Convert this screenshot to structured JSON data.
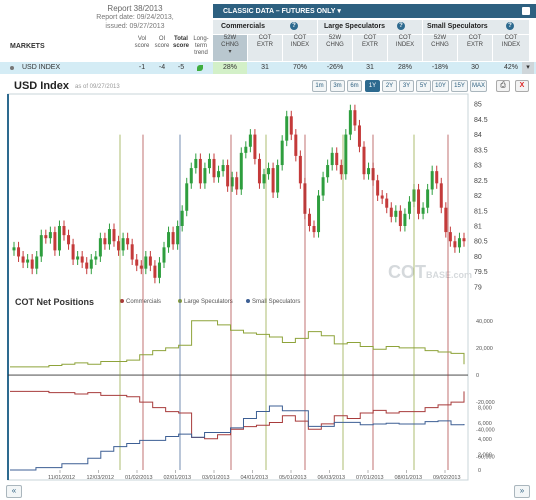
{
  "report": {
    "line1": "Report 38/2013",
    "line2": "Report date: 09/24/2013,",
    "line3": "issued: 09/27/2013"
  },
  "top_header": {
    "title": "CLASSIC DATA – FUTURES ONLY",
    "dropdown_icon": "chevron-down-icon",
    "print_icon": "printer-icon"
  },
  "groups": {
    "commercials": "Commercials",
    "large": "Large Speculators",
    "small": "Small Speculators",
    "help_glyph": "?"
  },
  "left_headers": {
    "markets": "MARKETS",
    "voi": [
      "Vol",
      "score"
    ],
    "oi": [
      "OI",
      "score"
    ],
    "total": [
      "Total",
      "score"
    ],
    "trend": [
      "Long-",
      "term",
      "trend"
    ]
  },
  "col_headers": {
    "chng": [
      "52W",
      "CHNG"
    ],
    "extr": [
      "COT",
      "EXTR"
    ],
    "index": [
      "COT",
      "INDEX"
    ]
  },
  "row": {
    "market": "USD INDEX",
    "vol": "-1",
    "oi": "-4",
    "total": "-5",
    "trend_icon": "leaf-icon",
    "comm": [
      "28%",
      "31",
      "70%"
    ],
    "large": [
      "-26%",
      "31",
      "28%"
    ],
    "small": [
      "-18%",
      "30",
      "42%"
    ]
  },
  "chart_header": {
    "title": "USD Index",
    "asof": "as of 09/27/2013",
    "ranges": [
      "1m",
      "3m",
      "6m",
      "1Y",
      "2Y",
      "3Y",
      "5Y",
      "10Y",
      "15Y",
      "MAX"
    ],
    "active_range": "1Y",
    "print_icon": "printer-icon",
    "close_glyph": "X"
  },
  "watermark": {
    "big": "COT",
    "small": "BASE",
    "suffix": ".com"
  },
  "cot_panel": {
    "title": "COT Net Positions"
  },
  "nav": {
    "prev": "«",
    "next": "»"
  },
  "colors": {
    "commercials": "#a83b3b",
    "large": "#8ea33a",
    "small": "#3d5f94",
    "up_candle": "#2e9e3e",
    "down_candle": "#c43a3a"
  },
  "chart_data": [
    {
      "type": "line",
      "title": "USD Index",
      "y_ticks": [
        "79",
        "79.5",
        "80",
        "80.5",
        "81",
        "81.5",
        "82",
        "82.5",
        "83",
        "83.5",
        "84",
        "84.5",
        "85"
      ],
      "ylim": [
        78.9,
        85.2
      ],
      "series": [
        {
          "values": [
            80.3,
            80.0,
            79.8,
            79.9,
            79.6,
            80.0,
            80.7,
            80.6,
            80.8,
            80.2,
            81.0,
            80.7,
            80.4,
            79.9,
            80.0,
            79.8,
            79.6,
            79.9,
            80.0,
            80.6,
            80.4,
            80.9,
            80.5,
            80.2,
            80.6,
            80.4,
            79.9,
            79.7,
            79.6,
            80.0,
            79.7,
            79.3,
            79.8,
            80.3,
            80.8,
            80.4,
            81.0,
            81.5,
            82.4,
            82.9,
            83.2,
            82.4,
            82.9,
            83.2,
            82.6,
            82.8,
            83.0,
            82.3,
            82.6,
            82.2,
            83.4,
            83.6,
            84.0,
            83.2,
            82.4,
            82.7,
            82.9,
            82.1,
            83.0,
            83.8,
            84.6,
            84.0,
            83.3,
            82.4,
            81.4,
            81.0,
            80.8,
            82.0,
            82.6,
            83.0,
            83.4,
            83.0,
            82.7,
            84.0,
            84.8,
            84.3,
            83.6,
            82.7,
            82.9,
            82.5,
            82.0,
            81.9,
            81.6,
            81.3,
            81.5,
            81.0,
            81.4,
            81.8,
            82.2,
            81.4,
            81.6,
            82.2,
            82.8,
            82.4,
            81.6,
            80.8,
            80.5,
            80.3,
            80.6,
            80.5
          ]
        }
      ]
    },
    {
      "type": "line",
      "title": "COT Net Positions",
      "y_ticks_right": [
        "40,000",
        "20,000",
        "0",
        "-20,000",
        "-40,000",
        "-60,000"
      ],
      "ylim_right": [
        -70000,
        45000
      ],
      "y_ticks_right_small": [
        "8,000",
        "6,000",
        "4,000",
        "2,000",
        "0"
      ],
      "ylim_right_small": [
        0,
        10000
      ],
      "x_ticks": [
        "11/01/2012",
        "12/03/2012",
        "01/02/2013",
        "02/01/2013",
        "03/01/2013",
        "04/01/2013",
        "05/01/2013",
        "06/03/2013",
        "07/01/2013",
        "08/01/2013",
        "09/02/2013"
      ],
      "series": [
        {
          "name": "Commercials",
          "values": [
            -12000,
            -12000,
            -12000,
            -13000,
            -13000,
            -14000,
            -13000,
            -15000,
            -15000,
            -16000,
            -20000,
            -24000,
            -27000,
            -28000,
            -46000,
            -47000,
            -44000,
            -40000,
            -38000,
            -37000,
            -35000,
            -30000,
            -34000,
            -40000,
            -36000,
            -30000,
            -32000,
            -28000,
            -26000,
            -28000,
            -27000,
            -27000,
            -24000,
            -22000,
            -20000,
            -12000
          ]
        },
        {
          "name": "Large Speculators",
          "values": [
            6000,
            6000,
            6000,
            7000,
            8000,
            9000,
            8000,
            10000,
            10000,
            11000,
            15000,
            18000,
            20000,
            22000,
            40000,
            40000,
            37000,
            33000,
            31000,
            30000,
            28000,
            24000,
            27000,
            32000,
            29000,
            23000,
            24000,
            21000,
            19000,
            21000,
            20000,
            20000,
            18000,
            17000,
            16000,
            8000
          ]
        },
        {
          "name": "Small Speculators",
          "values": [
            0,
            0,
            300,
            300,
            800,
            800,
            1500,
            2400,
            3000,
            3400,
            3800,
            3800,
            4300,
            4600,
            4200,
            4800,
            4800,
            5400,
            6600,
            7500,
            8200,
            7600,
            7600,
            5600,
            5600,
            6100,
            6100,
            5800,
            5900,
            6000,
            5900,
            5900,
            6200,
            6300,
            5800,
            5900
          ]
        }
      ]
    }
  ]
}
